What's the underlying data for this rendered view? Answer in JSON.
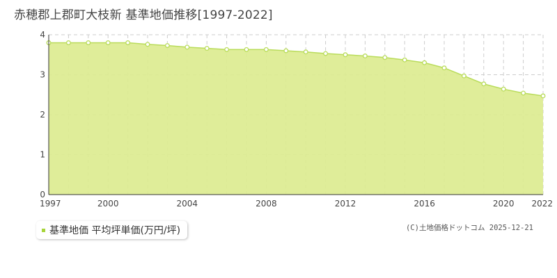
{
  "title": "赤穂郡上郡町大枝新 基準地価推移[1997-2022]",
  "legend": {
    "label": "基準地価 平均坪単価(万円/坪)"
  },
  "credit": "(C)土地価格ドットコム 2025-12-21",
  "colors": {
    "area": "#dcec90",
    "line": "#b9dc5a",
    "point_stroke": "#b9dc5a",
    "grid": "#cccccc",
    "legend_swatch": "#a7d43a"
  },
  "chart_data": {
    "type": "area",
    "x": [
      1997,
      1998,
      1999,
      2000,
      2001,
      2002,
      2003,
      2004,
      2005,
      2006,
      2007,
      2008,
      2009,
      2010,
      2011,
      2012,
      2013,
      2014,
      2015,
      2016,
      2017,
      2018,
      2019,
      2020,
      2021,
      2022
    ],
    "series": [
      {
        "name": "基準地価 平均坪単価(万円/坪)",
        "values": [
          3.8,
          3.8,
          3.8,
          3.8,
          3.8,
          3.76,
          3.73,
          3.69,
          3.66,
          3.63,
          3.63,
          3.63,
          3.6,
          3.57,
          3.53,
          3.5,
          3.47,
          3.43,
          3.37,
          3.3,
          3.17,
          2.97,
          2.77,
          2.64,
          2.54,
          2.47
        ]
      }
    ],
    "xlim": [
      1997,
      2022
    ],
    "ylim": [
      0,
      4
    ],
    "x_ticks": [
      "1997",
      "2000",
      "2004",
      "2008",
      "2012",
      "2016",
      "2020",
      "2022"
    ],
    "y_ticks": [
      "0",
      "1",
      "2",
      "3",
      "4"
    ],
    "grid": true,
    "legend_position": "bottom-left"
  }
}
